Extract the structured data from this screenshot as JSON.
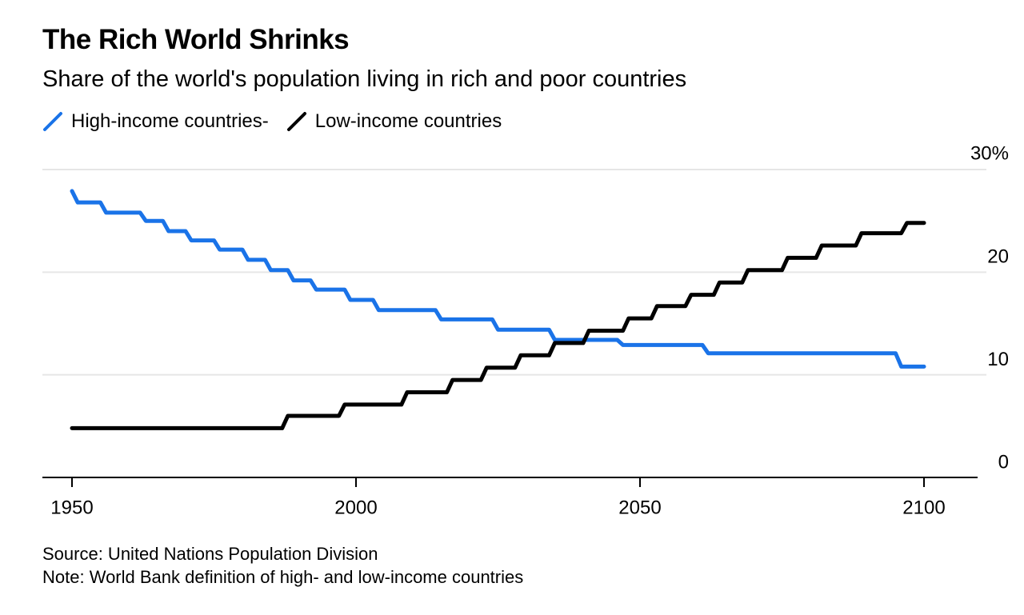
{
  "chart_data": {
    "type": "line",
    "title": "The Rich World Shrinks",
    "subtitle": "Share of the world's population living in rich and poor countries",
    "x_ticks": [
      "1950",
      "2000",
      "2050",
      "2100"
    ],
    "y_ticks": [
      "30%",
      "20",
      "10",
      "0"
    ],
    "xlim": [
      1945,
      2110
    ],
    "ylim": [
      0,
      30
    ],
    "grid": true,
    "legend_position": "top-left",
    "source": "Source: United Nations Population Division",
    "note": "Note: World Bank definition of high- and low-income countries",
    "series": [
      {
        "name": "High-income countries-",
        "color": "#1a73e8",
        "x": [
          1950,
          1951,
          1955,
          1956,
          1962,
          1963,
          1966,
          1967,
          1970,
          1971,
          1975,
          1976,
          1980,
          1981,
          1984,
          1985,
          1988,
          1989,
          1992,
          1993,
          1998,
          1999,
          2003,
          2004,
          2014,
          2015,
          2024,
          2025,
          2034,
          2035,
          2046,
          2047,
          2061,
          2062,
          2095,
          2096,
          2100
        ],
        "y": [
          27.9,
          26.8,
          26.8,
          25.8,
          25.8,
          25.0,
          25.0,
          24.0,
          24.0,
          23.1,
          23.1,
          22.2,
          22.2,
          21.2,
          21.2,
          20.2,
          20.2,
          19.2,
          19.2,
          18.3,
          18.3,
          17.3,
          17.3,
          16.3,
          16.3,
          15.4,
          15.4,
          14.4,
          14.4,
          13.4,
          13.4,
          12.9,
          12.9,
          12.1,
          12.1,
          10.8,
          10.8
        ]
      },
      {
        "name": "Low-income countries",
        "color": "#000000",
        "x": [
          1950,
          1987,
          1988,
          1997,
          1998,
          2008,
          2009,
          2016,
          2017,
          2022,
          2023,
          2028,
          2029,
          2034,
          2035,
          2040,
          2041,
          2047,
          2048,
          2052,
          2053,
          2058,
          2059,
          2063,
          2064,
          2068,
          2069,
          2075,
          2076,
          2081,
          2082,
          2088,
          2089,
          2095,
          2096,
          2097,
          2098,
          2100
        ],
        "y": [
          4.8,
          4.8,
          6.0,
          6.0,
          7.1,
          7.1,
          8.3,
          8.3,
          9.5,
          9.5,
          10.7,
          10.7,
          11.9,
          11.9,
          13.1,
          13.1,
          14.3,
          14.3,
          15.5,
          15.5,
          16.7,
          16.7,
          17.8,
          17.8,
          19.0,
          19.0,
          20.2,
          20.2,
          21.4,
          21.4,
          22.6,
          22.6,
          23.8,
          23.8,
          23.8,
          24.8,
          24.8,
          24.8
        ]
      }
    ]
  }
}
